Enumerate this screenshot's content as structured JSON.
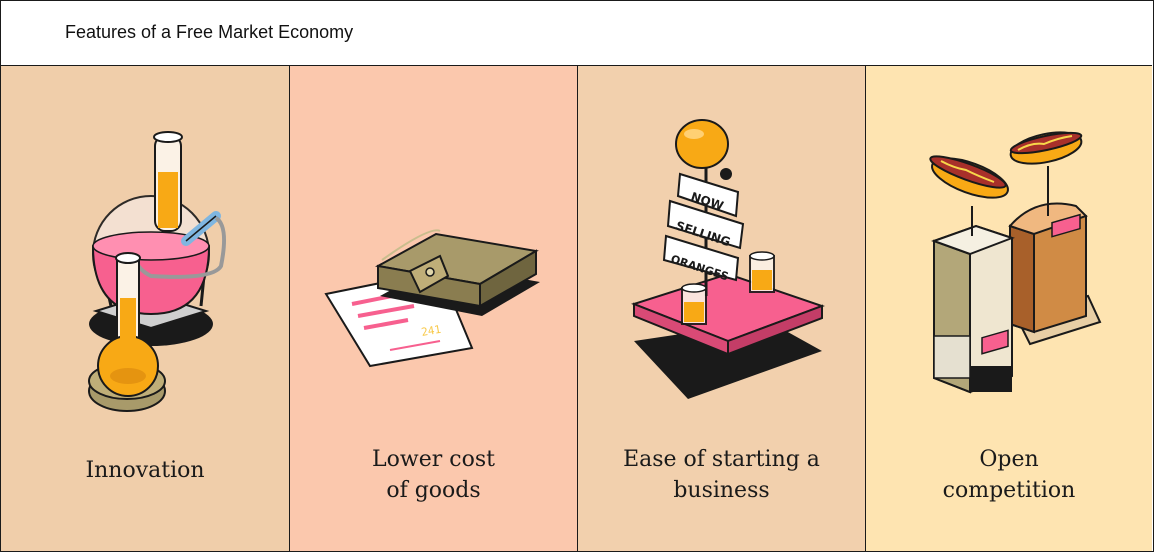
{
  "header": {
    "title": "Features of a Free Market Economy"
  },
  "colors": {
    "panel1": "#f0ceaa",
    "panel2": "#fbc8ad",
    "panel3": "#f2d0ad",
    "panel4": "#fee4b1",
    "pink": "#f7608f",
    "orange": "#f8a915",
    "olive": "#a89a6a",
    "outline": "#1a1a1a"
  },
  "panels": [
    {
      "id": "innovation",
      "icon": "chemistry-flask-icon",
      "lines": [
        "Innovation"
      ]
    },
    {
      "id": "lower-cost",
      "icon": "wallet-receipt-icon",
      "lines": [
        "Lower cost",
        "of goods"
      ]
    },
    {
      "id": "ease-starting",
      "icon": "orange-stand-icon",
      "lines": [
        "Ease of starting a",
        "business"
      ],
      "sign": [
        "NOW",
        "SELLING",
        "ORANGES"
      ]
    },
    {
      "id": "open-competition",
      "icon": "hotdog-stands-icon",
      "lines": [
        "Open",
        "competition"
      ]
    }
  ],
  "receipt": {
    "text": "241"
  }
}
